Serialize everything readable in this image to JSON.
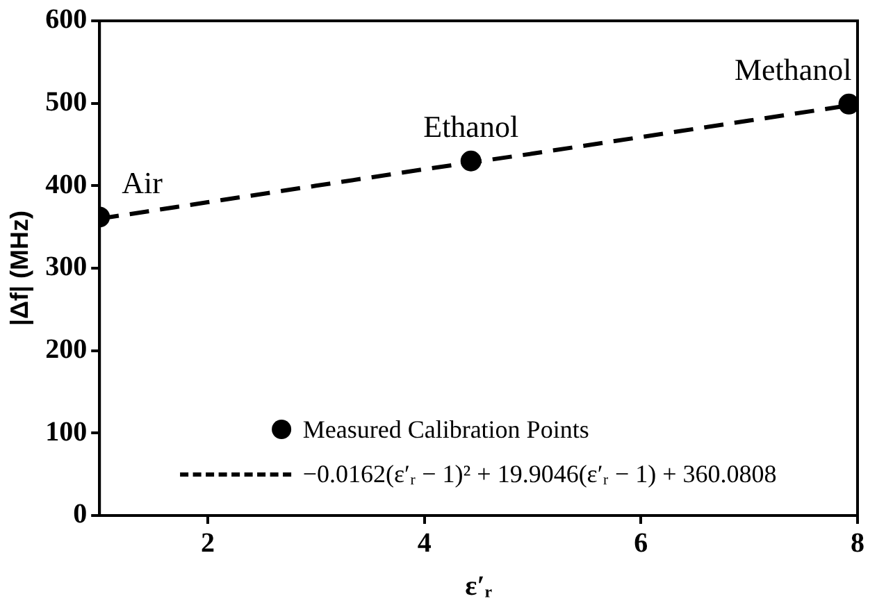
{
  "chart_data": {
    "type": "scatter",
    "xlabel": "ε′ᵣ",
    "ylabel": "|Δf| (MHz)",
    "xlim": [
      1,
      8
    ],
    "xticks": [
      2,
      4,
      6,
      8
    ],
    "ylim": [
      0,
      600
    ],
    "yticks": [
      0,
      100,
      200,
      300,
      400,
      500,
      600
    ],
    "grid": false,
    "legend": "bottom",
    "series": [
      {
        "name": "Measured Calibration Points",
        "color": "#000000",
        "marker": "circle",
        "x": [
          1,
          4.43,
          7.92
        ],
        "values": [
          362,
          430,
          499
        ]
      },
      {
        "name": "−0.0162(ε′ᵣ − 1)² + 19.9046(ε′ᵣ − 1) + 360.0808",
        "type": "line",
        "color": "#000000",
        "marker": "none",
        "line_style": "dashed",
        "x": [
          1,
          2,
          3,
          4,
          5,
          6,
          7,
          8
        ],
        "values": [
          360,
          380,
          400,
          420,
          439,
          459,
          479,
          499
        ]
      }
    ],
    "annotations": [
      {
        "text": "Air",
        "x": 1,
        "y": 362
      },
      {
        "text": "Ethanol",
        "x": 4.43,
        "y": 430
      },
      {
        "text": "Methanol",
        "x": 7.92,
        "y": 499
      }
    ]
  }
}
